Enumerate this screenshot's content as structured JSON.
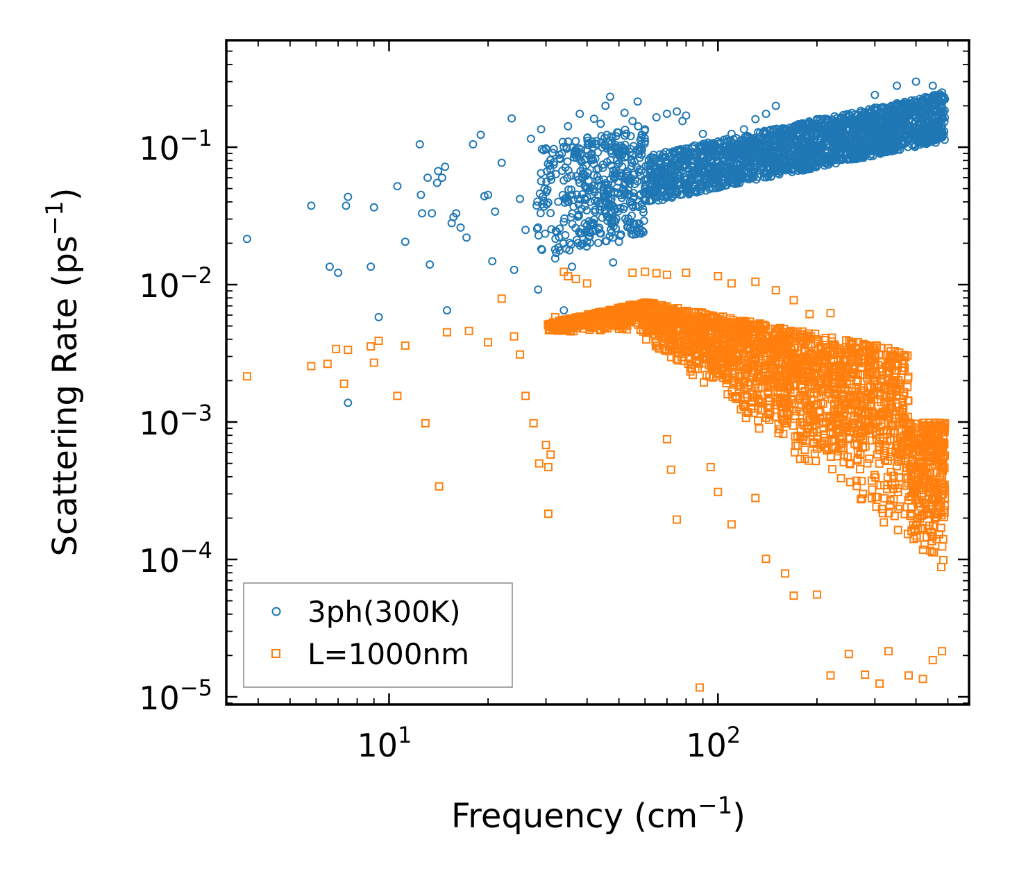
{
  "chart_data": {
    "type": "scatter",
    "xscale": "log",
    "yscale": "log",
    "xlim": [
      3.2,
      580
    ],
    "ylim": [
      8.8e-06,
      0.6
    ],
    "xlabel": {
      "text": "Frequency (cm",
      "sup": "−1",
      "close": ")"
    },
    "ylabel": {
      "text": "Scattering Rate (ps",
      "sup": "−1",
      "close": ")"
    },
    "x_ticks": [
      {
        "base": "10",
        "exp": "1",
        "value": 10
      },
      {
        "base": "10",
        "exp": "2",
        "value": 100
      }
    ],
    "y_ticks": [
      {
        "base": "10",
        "exp": "−1",
        "value": 0.1
      },
      {
        "base": "10",
        "exp": "−2",
        "value": 0.01
      },
      {
        "base": "10",
        "exp": "−3",
        "value": 0.001
      },
      {
        "base": "10",
        "exp": "−4",
        "value": 0.0001
      },
      {
        "base": "10",
        "exp": "−5",
        "value": 1e-05
      }
    ],
    "legend_position": "lower-left",
    "series": [
      {
        "name": "3ph(300K)",
        "marker": "circle",
        "color": "#1f77b4",
        "points": [
          [
            3.7,
            0.0215
          ],
          [
            5.8,
            0.0375
          ],
          [
            6.6,
            0.0135
          ],
          [
            7.0,
            0.0122
          ],
          [
            7.4,
            0.0375
          ],
          [
            7.5,
            0.0435
          ],
          [
            7.5,
            0.00138
          ],
          [
            8.8,
            0.0135
          ],
          [
            9.0,
            0.0365
          ],
          [
            9.3,
            0.0058
          ],
          [
            10.6,
            0.052
          ],
          [
            11.2,
            0.0205
          ],
          [
            12.4,
            0.105
          ],
          [
            12.5,
            0.045
          ],
          [
            12.6,
            0.033
          ],
          [
            13.1,
            0.06
          ],
          [
            13.3,
            0.014
          ],
          [
            13.5,
            0.033
          ],
          [
            14.0,
            0.055
          ],
          [
            14.1,
            0.067
          ],
          [
            14.5,
            0.06
          ],
          [
            14.8,
            0.072
          ],
          [
            15.0,
            0.0065
          ],
          [
            15.5,
            0.028
          ],
          [
            15.7,
            0.031
          ],
          [
            16.0,
            0.033
          ],
          [
            16.5,
            0.026
          ],
          [
            17.2,
            0.022
          ],
          [
            18.0,
            0.105
          ],
          [
            19.0,
            0.123
          ],
          [
            19.5,
            0.044
          ],
          [
            20.0,
            0.045
          ],
          [
            20.6,
            0.0148
          ],
          [
            21.0,
            0.034
          ],
          [
            22.0,
            0.077
          ],
          [
            23.6,
            0.162
          ],
          [
            24.0,
            0.0128
          ],
          [
            25.0,
            0.042
          ],
          [
            26.0,
            0.025
          ],
          [
            27.0,
            0.115
          ],
          [
            28.4,
            0.0092
          ],
          [
            29.0,
            0.135
          ],
          [
            30.0,
            0.098
          ],
          [
            31.0,
            0.081
          ],
          [
            32.0,
            0.0155
          ],
          [
            33.0,
            0.083
          ],
          [
            34.0,
            0.0065
          ],
          [
            35.0,
            0.142
          ],
          [
            36.0,
            0.0135
          ],
          [
            38.0,
            0.175
          ],
          [
            38.5,
            0.0255
          ],
          [
            40.0,
            0.0205
          ],
          [
            42.0,
            0.161
          ],
          [
            44.0,
            0.148
          ],
          [
            45.5,
            0.2
          ],
          [
            47.0,
            0.233
          ],
          [
            48.0,
            0.0145
          ],
          [
            50.0,
            0.0205
          ],
          [
            52.0,
            0.178
          ],
          [
            55.0,
            0.155
          ],
          [
            57.0,
            0.215
          ],
          [
            60.0,
            0.135
          ],
          [
            65.0,
            0.165
          ],
          [
            70.0,
            0.175
          ],
          [
            75.0,
            0.182
          ],
          [
            78.0,
            0.155
          ],
          [
            80.0,
            0.17
          ],
          [
            90.0,
            0.125
          ],
          [
            95.0,
            0.058
          ],
          [
            100.0,
            0.11
          ],
          [
            110.0,
            0.125
          ],
          [
            120.0,
            0.135
          ],
          [
            130.0,
            0.16
          ],
          [
            140.0,
            0.175
          ],
          [
            150.0,
            0.2
          ],
          [
            180.0,
            0.13
          ],
          [
            200.0,
            0.16
          ],
          [
            250.0,
            0.17
          ],
          [
            300.0,
            0.24
          ],
          [
            350.0,
            0.28
          ],
          [
            400.0,
            0.3
          ],
          [
            450.0,
            0.28
          ],
          [
            480.0,
            0.25
          ]
        ]
      },
      {
        "name": "L=1000nm",
        "marker": "square",
        "color": "#ff7f0e",
        "points": [
          [
            3.7,
            0.00215
          ],
          [
            5.8,
            0.00255
          ],
          [
            6.5,
            0.00265
          ],
          [
            6.9,
            0.0034
          ],
          [
            7.3,
            0.0019
          ],
          [
            7.5,
            0.00335
          ],
          [
            8.8,
            0.00355
          ],
          [
            9.0,
            0.0027
          ],
          [
            9.3,
            0.0039
          ],
          [
            10.6,
            0.00155
          ],
          [
            11.2,
            0.0036
          ],
          [
            12.9,
            0.00098
          ],
          [
            14.2,
            0.00034
          ],
          [
            15.0,
            0.0045
          ],
          [
            17.5,
            0.0046
          ],
          [
            20.0,
            0.0038
          ],
          [
            22.0,
            0.0079
          ],
          [
            24.0,
            0.0042
          ],
          [
            25.0,
            0.0031
          ],
          [
            26.0,
            0.00155
          ],
          [
            27.5,
            0.00098
          ],
          [
            28.6,
            0.0005
          ],
          [
            30.0,
            0.00068
          ],
          [
            30.5,
            0.00047
          ],
          [
            30.5,
            0.000215
          ],
          [
            31.0,
            0.00058
          ],
          [
            32.0,
            0.0058
          ],
          [
            34.0,
            0.0124
          ],
          [
            35.0,
            0.0115
          ],
          [
            37.0,
            0.011
          ],
          [
            40.0,
            0.0102
          ],
          [
            55.0,
            0.0122
          ],
          [
            60.0,
            0.0124
          ],
          [
            65.0,
            0.0121
          ],
          [
            70.0,
            0.0118
          ],
          [
            80.0,
            0.0122
          ],
          [
            100.0,
            0.0115
          ],
          [
            110.0,
            0.0102
          ],
          [
            130.0,
            0.0105
          ],
          [
            150.0,
            0.0091
          ],
          [
            170.0,
            0.0077
          ],
          [
            190.0,
            0.0061
          ],
          [
            220.0,
            0.0062
          ],
          [
            70.0,
            0.00075
          ],
          [
            72.0,
            0.00045
          ],
          [
            75.0,
            0.000195
          ],
          [
            88.0,
            1.17e-05
          ],
          [
            95.0,
            0.00047
          ],
          [
            100.0,
            0.00031
          ],
          [
            110.0,
            0.00018
          ],
          [
            130.0,
            0.00028
          ],
          [
            140.0,
            0.000101
          ],
          [
            160.0,
            7.9e-05
          ],
          [
            170.0,
            5.45e-05
          ],
          [
            200.0,
            5.55e-05
          ],
          [
            220.0,
            1.43e-05
          ],
          [
            250.0,
            2.05e-05
          ],
          [
            280.0,
            1.45e-05
          ],
          [
            310.0,
            1.25e-05
          ],
          [
            330.0,
            2.15e-05
          ],
          [
            380.0,
            1.43e-05
          ],
          [
            420.0,
            1.35e-05
          ],
          [
            450.0,
            1.85e-05
          ],
          [
            480.0,
            2.15e-05
          ],
          [
            490.0,
            0.00098
          ]
        ]
      }
    ]
  }
}
